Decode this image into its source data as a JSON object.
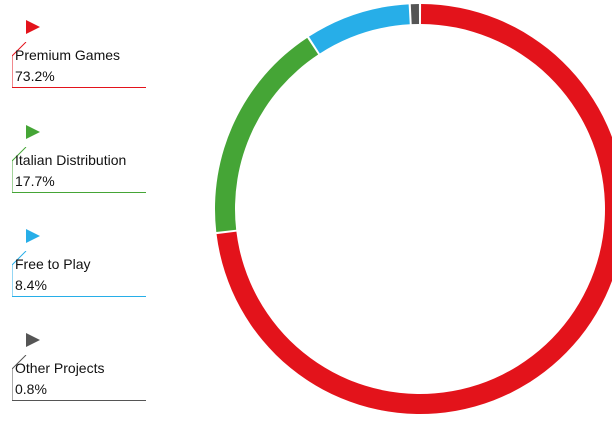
{
  "chart_data": {
    "type": "pie",
    "variant": "donut",
    "legend": "left",
    "categories": [
      "Premium Games",
      "Italian Distribution",
      "Free to Play",
      "Other Projects"
    ],
    "values": [
      73.2,
      17.7,
      8.4,
      0.8
    ],
    "value_labels": [
      "73.2%",
      "17.7%",
      "8.4%",
      "0.8%"
    ],
    "colors": [
      "#e3131b",
      "#45a536",
      "#27aee8",
      "#555555"
    ]
  },
  "legend": {
    "items": [
      {
        "label": "Premium Games",
        "value": "73.2%",
        "color": "#e3131b",
        "icon": "flag-icon"
      },
      {
        "label": "Italian Distribution",
        "value": "17.7%",
        "color": "#45a536",
        "icon": "flag-icon"
      },
      {
        "label": "Free to Play",
        "value": "8.4%",
        "color": "#27aee8",
        "icon": "flag-icon"
      },
      {
        "label": "Other Projects",
        "value": "0.8%",
        "color": "#555555",
        "icon": "flag-icon"
      }
    ]
  }
}
